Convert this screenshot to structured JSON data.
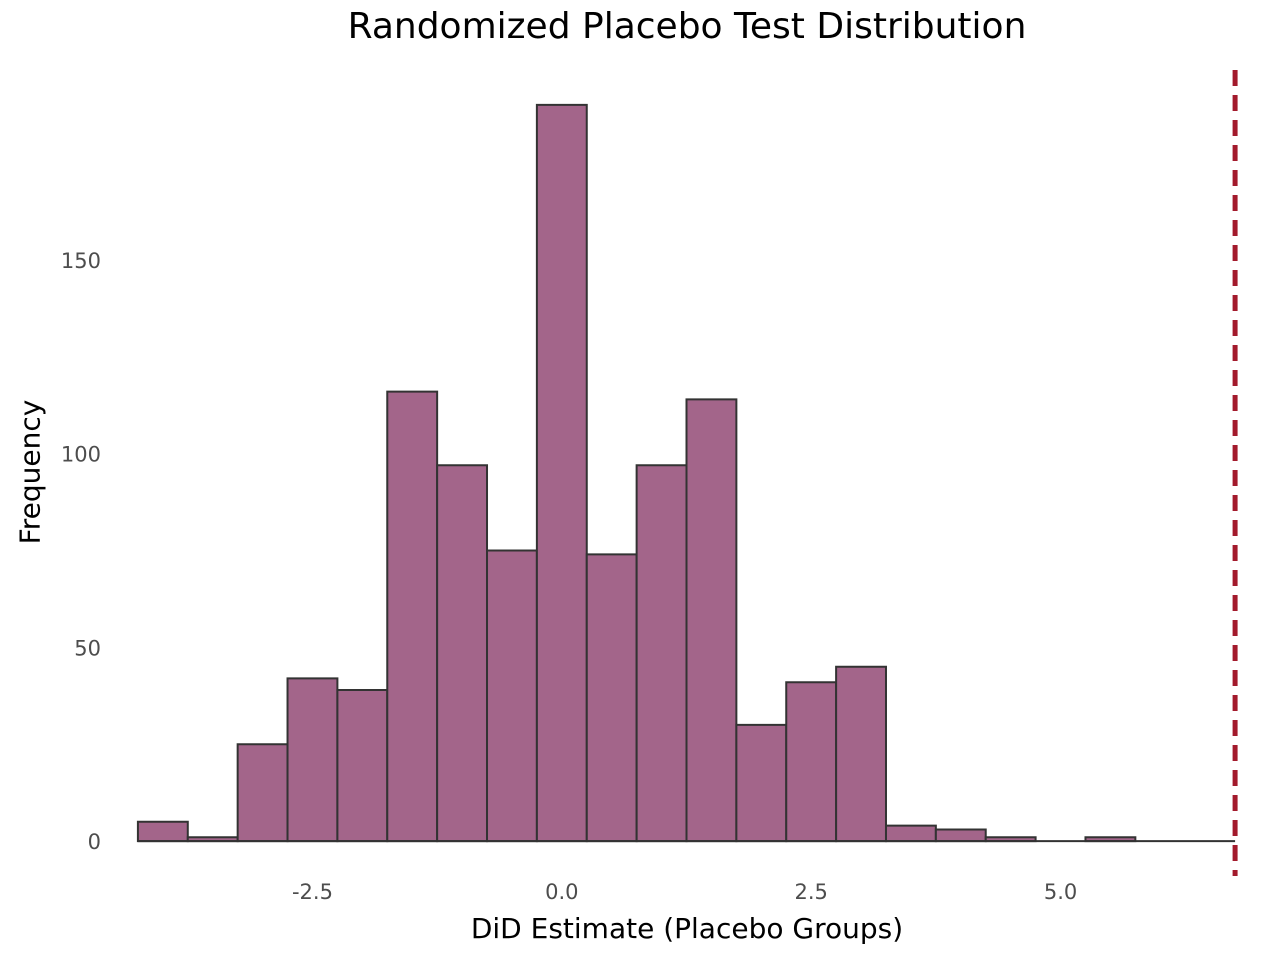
{
  "chart_data": {
    "type": "bar",
    "title": "Randomized Placebo Test Distribution",
    "xlabel": "DiD Estimate (Placebo Groups)",
    "ylabel": "Frequency",
    "bin_edges": [
      -4.25,
      -3.75,
      -3.25,
      -2.75,
      -2.25,
      -1.75,
      -1.25,
      -0.75,
      -0.25,
      0.25,
      0.75,
      1.25,
      1.75,
      2.25,
      2.75,
      3.25,
      3.75,
      4.25,
      4.75,
      5.25,
      5.75,
      6.25,
      6.75
    ],
    "values": [
      5,
      1,
      25,
      42,
      39,
      116,
      97,
      75,
      190,
      74,
      97,
      114,
      30,
      41,
      45,
      4,
      3,
      1,
      0,
      1,
      0,
      0
    ],
    "x_ticks": [
      -2.5,
      0.0,
      2.5,
      5.0
    ],
    "x_tick_labels": [
      "-2.5",
      "0.0",
      "2.5",
      "5.0"
    ],
    "y_ticks": [
      0,
      50,
      100,
      150
    ],
    "y_tick_labels": [
      "0",
      "50",
      "100",
      "150"
    ],
    "xlim": [
      -4.6,
      7.1
    ],
    "ylim": [
      -9,
      199
    ],
    "reference_line": {
      "x": 6.75,
      "color": "#a31a2c",
      "style": "dashed"
    },
    "bar_fill": "#a3658a",
    "bar_edge": "#333333",
    "grid": false,
    "legend": "none"
  }
}
